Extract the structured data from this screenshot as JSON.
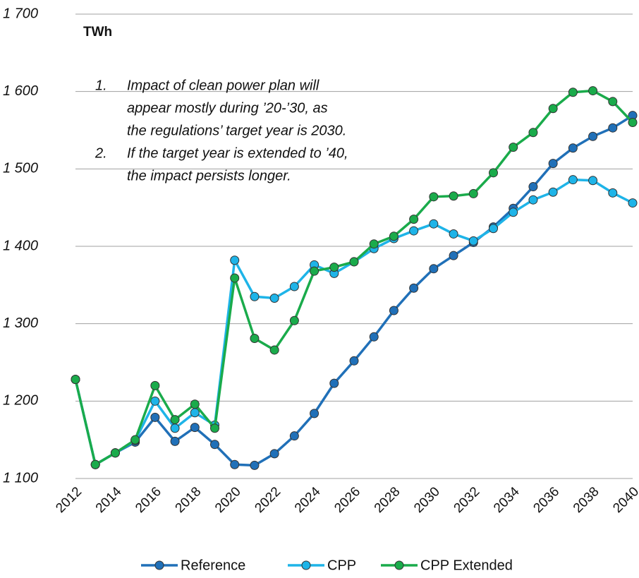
{
  "chart_data": {
    "type": "line",
    "y_axis_label": "TWh",
    "annotations": [
      {
        "marker": "1.",
        "lines": [
          "Impact of clean power plan will",
          "appear mostly during ’20-’30, as",
          "the regulations’ target year is 2030."
        ]
      },
      {
        "marker": "2.",
        "lines": [
          "If the target year is extended to ’40,",
          "the impact persists longer."
        ]
      }
    ],
    "x": [
      2012,
      2013,
      2014,
      2015,
      2016,
      2017,
      2018,
      2019,
      2020,
      2021,
      2022,
      2023,
      2024,
      2025,
      2026,
      2027,
      2028,
      2029,
      2030,
      2031,
      2032,
      2033,
      2034,
      2035,
      2036,
      2037,
      2038,
      2039,
      2040
    ],
    "xlim": [
      2012,
      2040
    ],
    "xticks": [
      2012,
      2014,
      2016,
      2018,
      2020,
      2022,
      2024,
      2026,
      2028,
      2030,
      2032,
      2034,
      2036,
      2038,
      2040
    ],
    "ylim": [
      1100,
      1700
    ],
    "yticks": [
      {
        "value": 1100,
        "label": "1 100"
      },
      {
        "value": 1200,
        "label": "1 200"
      },
      {
        "value": 1300,
        "label": "1 300"
      },
      {
        "value": 1400,
        "label": "1 400"
      },
      {
        "value": 1500,
        "label": "1 500"
      },
      {
        "value": 1600,
        "label": "1 600"
      },
      {
        "value": 1700,
        "label": "1 700"
      }
    ],
    "grid": true,
    "legend": "bottom",
    "series": [
      {
        "name": "Reference",
        "color": "#2070b8",
        "values": [
          1228,
          1118,
          1133,
          1147,
          1179,
          1148,
          1166,
          1144,
          1118,
          1117,
          1132,
          1155,
          1184,
          1223,
          1252,
          1283,
          1317,
          1346,
          1371,
          1388,
          1405,
          1425,
          1449,
          1477,
          1507,
          1527,
          1542,
          1553,
          1569
        ]
      },
      {
        "name": "CPP",
        "color": "#1eb4e8",
        "values": [
          1228,
          1118,
          1133,
          1149,
          1200,
          1165,
          1185,
          1169,
          1382,
          1335,
          1333,
          1348,
          1376,
          1365,
          1380,
          1397,
          1410,
          1420,
          1429,
          1416,
          1407,
          1423,
          1444,
          1460,
          1470,
          1486,
          1485,
          1469,
          1456
        ]
      },
      {
        "name": "CPP Extended",
        "color": "#1aab4b",
        "values": [
          1228,
          1118,
          1133,
          1150,
          1220,
          1176,
          1196,
          1165,
          1359,
          1281,
          1266,
          1304,
          1368,
          1373,
          1380,
          1403,
          1413,
          1435,
          1464,
          1465,
          1468,
          1495,
          1528,
          1547,
          1578,
          1599,
          1601,
          1587,
          1560
        ]
      }
    ]
  }
}
